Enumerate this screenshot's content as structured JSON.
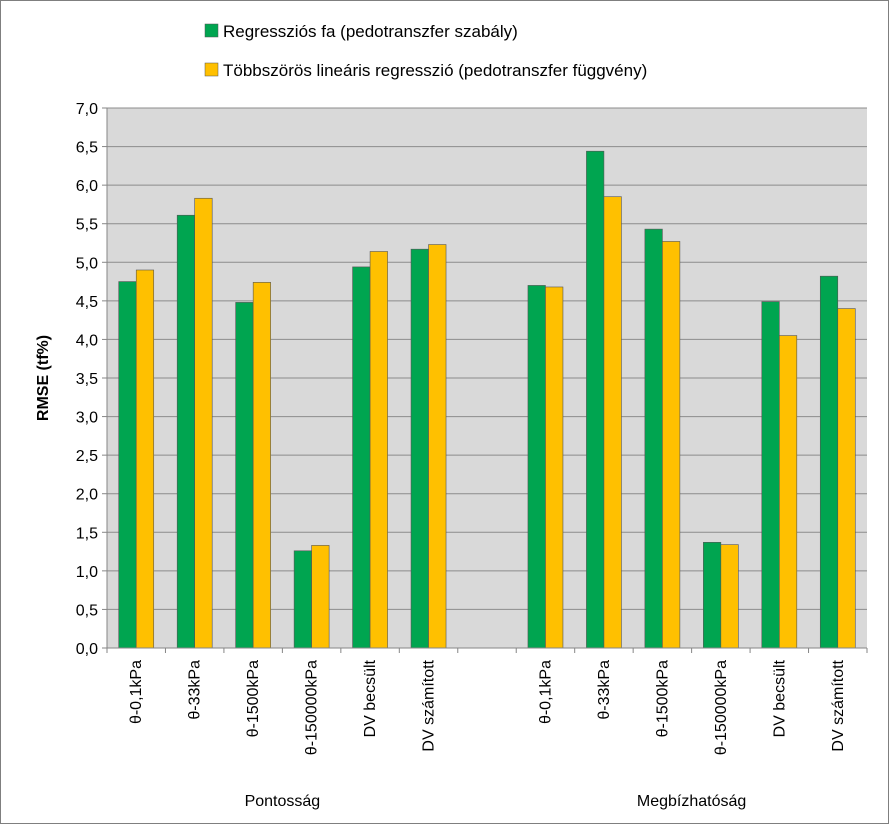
{
  "chart_data": {
    "type": "bar",
    "ylabel": "RMSE (tf%)",
    "xlabel": "",
    "ylim": [
      0,
      7
    ],
    "ytick_step": 0.5,
    "ytick_labels": [
      "0,0",
      "0,5",
      "1,0",
      "1,5",
      "2,0",
      "2,5",
      "3,0",
      "3,5",
      "4,0",
      "4,5",
      "5,0",
      "5,5",
      "6,0",
      "6,5",
      "7,0"
    ],
    "grid": true,
    "legend_position": "top",
    "groups": [
      {
        "label": "Pontosság",
        "categories": [
          "θ-0,1kPa",
          "θ-33kPa",
          "θ-1500kPa",
          "θ-150000kPa",
          "DV becsült",
          "DV számított"
        ]
      },
      {
        "label": "Megbízhatóság",
        "categories": [
          "θ-0,1kPa",
          "θ-33kPa",
          "θ-1500kPa",
          "θ-150000kPa",
          "DV becsült",
          "DV számított"
        ]
      }
    ],
    "series": [
      {
        "name": "Regressziós fa (pedotranszfer szabály)",
        "color": "#00a550",
        "values": [
          4.75,
          5.61,
          4.48,
          1.26,
          4.94,
          5.17,
          4.7,
          6.44,
          5.43,
          1.37,
          4.49,
          4.82
        ]
      },
      {
        "name": "Többszörös lineáris regresszió (pedotranszfer függvény)",
        "color": "#ffc000",
        "values": [
          4.9,
          5.83,
          4.74,
          1.33,
          5.14,
          5.23,
          4.68,
          5.85,
          5.27,
          1.34,
          4.05,
          4.4
        ]
      }
    ]
  }
}
